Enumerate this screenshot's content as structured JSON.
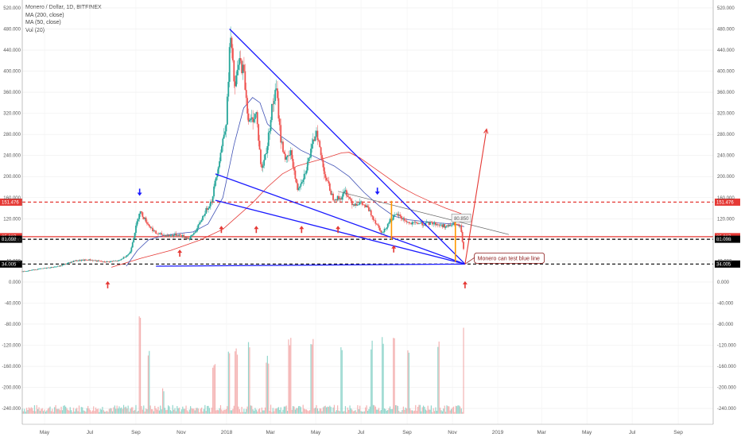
{
  "legend": {
    "title": "Monero / Dollar, 1D, BITFINEX",
    "ma200": "MA (200, close)",
    "ma50": "MA (50, close)",
    "vol": "Vol (20)"
  },
  "chart_data": {
    "type": "candlestick",
    "y_ticks": [
      "520.000",
      "480.000",
      "440.000",
      "400.000",
      "360.000",
      "320.000",
      "280.000",
      "240.000",
      "200.000",
      "160.000",
      "120.000",
      "80.000",
      "40.000",
      "0.000",
      "-40.000",
      "-80.000",
      "-120.000",
      "-160.000",
      "-200.000",
      "-240.000"
    ],
    "y_tick_values": [
      520,
      480,
      440,
      400,
      360,
      320,
      280,
      240,
      200,
      160,
      120,
      80,
      40,
      0,
      -40,
      -80,
      -120,
      -160,
      -200,
      -240
    ],
    "ylim": [
      -270,
      535
    ],
    "x_ticks": [
      "May",
      "Jul",
      "Sep",
      "Nov",
      "2018",
      "Mar",
      "May",
      "Jul",
      "Sep",
      "Nov",
      "2019",
      "Mar",
      "May",
      "Jul",
      "Sep"
    ],
    "x_tick_days": [
      0,
      61,
      123,
      184,
      245,
      304,
      365,
      426,
      488,
      549,
      610,
      669,
      730,
      791,
      853
    ],
    "xlim_days": [
      -30,
      900
    ],
    "price_path": [
      [
        -30,
        20
      ],
      [
        20,
        30
      ],
      [
        40,
        40
      ],
      [
        60,
        42
      ],
      [
        80,
        38
      ],
      [
        100,
        40
      ],
      [
        115,
        55
      ],
      [
        128,
        135
      ],
      [
        140,
        108
      ],
      [
        150,
        92
      ],
      [
        165,
        88
      ],
      [
        180,
        90
      ],
      [
        195,
        82
      ],
      [
        205,
        100
      ],
      [
        215,
        130
      ],
      [
        225,
        155
      ],
      [
        235,
        230
      ],
      [
        245,
        310
      ],
      [
        250,
        470
      ],
      [
        256,
        365
      ],
      [
        262,
        420
      ],
      [
        268,
        400
      ],
      [
        275,
        300
      ],
      [
        285,
        320
      ],
      [
        292,
        210
      ],
      [
        300,
        260
      ],
      [
        306,
        330
      ],
      [
        312,
        365
      ],
      [
        318,
        270
      ],
      [
        325,
        230
      ],
      [
        332,
        245
      ],
      [
        340,
        175
      ],
      [
        350,
        205
      ],
      [
        360,
        255
      ],
      [
        366,
        290
      ],
      [
        372,
        240
      ],
      [
        378,
        200
      ],
      [
        388,
        160
      ],
      [
        398,
        158
      ],
      [
        405,
        172
      ],
      [
        415,
        148
      ],
      [
        425,
        150
      ],
      [
        435,
        140
      ],
      [
        445,
        115
      ],
      [
        455,
        92
      ],
      [
        465,
        118
      ],
      [
        475,
        128
      ],
      [
        482,
        120
      ],
      [
        492,
        110
      ],
      [
        502,
        112
      ],
      [
        512,
        110
      ],
      [
        522,
        112
      ],
      [
        532,
        108
      ],
      [
        542,
        105
      ],
      [
        552,
        110
      ],
      [
        560,
        104
      ],
      [
        565,
        50
      ]
    ],
    "ma50": [
      [
        110,
        30
      ],
      [
        125,
        60
      ],
      [
        140,
        80
      ],
      [
        160,
        88
      ],
      [
        180,
        92
      ],
      [
        200,
        95
      ],
      [
        220,
        110
      ],
      [
        240,
        160
      ],
      [
        255,
        260
      ],
      [
        268,
        330
      ],
      [
        280,
        350
      ],
      [
        290,
        340
      ],
      [
        300,
        300
      ],
      [
        315,
        280
      ],
      [
        330,
        265
      ],
      [
        345,
        250
      ],
      [
        360,
        240
      ],
      [
        375,
        230
      ],
      [
        390,
        220
      ],
      [
        410,
        200
      ],
      [
        430,
        170
      ],
      [
        450,
        145
      ],
      [
        470,
        125
      ],
      [
        490,
        118
      ],
      [
        510,
        115
      ],
      [
        530,
        112
      ],
      [
        550,
        110
      ],
      [
        565,
        105
      ]
    ],
    "ma200": [
      [
        90,
        28
      ],
      [
        130,
        45
      ],
      [
        170,
        60
      ],
      [
        210,
        80
      ],
      [
        240,
        100
      ],
      [
        260,
        125
      ],
      [
        280,
        150
      ],
      [
        300,
        180
      ],
      [
        320,
        205
      ],
      [
        340,
        220
      ],
      [
        360,
        228
      ],
      [
        380,
        236
      ],
      [
        400,
        245
      ],
      [
        410,
        246
      ],
      [
        425,
        235
      ],
      [
        440,
        220
      ],
      [
        460,
        200
      ],
      [
        480,
        180
      ],
      [
        500,
        165
      ],
      [
        520,
        152
      ],
      [
        540,
        140
      ],
      [
        560,
        130
      ],
      [
        570,
        122
      ]
    ],
    "volume_spikes": [
      [
        128,
        -80
      ],
      [
        140,
        -140
      ],
      [
        160,
        -210
      ],
      [
        228,
        -170
      ],
      [
        248,
        -150
      ],
      [
        258,
        -140
      ],
      [
        275,
        -130
      ],
      [
        300,
        -155
      ],
      [
        330,
        -125
      ],
      [
        360,
        -120
      ],
      [
        400,
        -140
      ],
      [
        440,
        -130
      ],
      [
        455,
        -120
      ],
      [
        470,
        -115
      ],
      [
        490,
        -145
      ],
      [
        530,
        -125
      ],
      [
        565,
        -100
      ]
    ],
    "volume_base": -250,
    "h_levels": [
      {
        "value": 151.476,
        "label": "151.476",
        "color": "#e53935",
        "dash": "4,3"
      },
      {
        "value": 85.987,
        "label": "85.987",
        "color": "#e53935",
        "dash": "none"
      },
      {
        "value": 81.098,
        "label": "81.098",
        "color": "#000000",
        "dash": "4,3"
      },
      {
        "value": 34.005,
        "label": "34.005",
        "color": "#000000",
        "dash": "4,3"
      }
    ],
    "trend_lines": [
      {
        "from": [
          249,
          480
        ],
        "to": [
          566,
          34
        ],
        "color": "#1a1aff"
      },
      {
        "from": [
          230,
          205
        ],
        "to": [
          566,
          34
        ],
        "color": "#1a1aff"
      },
      {
        "from": [
          230,
          155
        ],
        "to": [
          566,
          34
        ],
        "color": "#1a1aff"
      },
      {
        "from": [
          150,
          30
        ],
        "to": [
          566,
          34
        ],
        "color": "#1a1aff"
      }
    ],
    "gray_line": {
      "from": [
        395,
        172
      ],
      "to": [
        625,
        90
      ]
    },
    "projection": {
      "from": [
        566,
        34
      ],
      "to": [
        595,
        290
      ]
    },
    "red_arrows_up": [
      [
        85,
        0
      ],
      [
        182,
        60
      ],
      [
        238,
        105
      ],
      [
        285,
        105
      ],
      [
        346,
        105
      ],
      [
        395,
        105
      ],
      [
        470,
        68
      ],
      [
        566,
        0
      ]
    ],
    "blue_arrows_down": [
      [
        128,
        165
      ],
      [
        448,
        167
      ]
    ],
    "orange_bars": [
      [
        467,
        154,
        80
      ],
      [
        553,
        115,
        38
      ]
    ],
    "price_label": "80.850",
    "note": "Monero can test blue line"
  }
}
